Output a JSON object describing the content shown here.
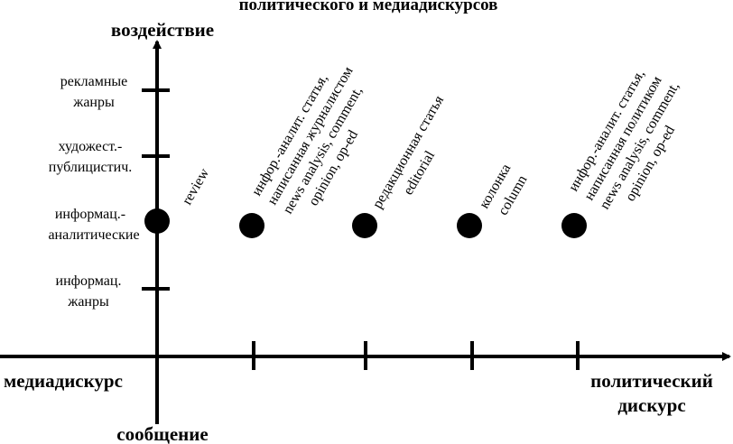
{
  "title": "политического и медиадискурсов",
  "axes": {
    "y_top": "воздействие",
    "y_bottom": "сообщение",
    "x_left": "медиадискурс",
    "x_right_line1": "политический",
    "x_right_line2": "дискурс"
  },
  "y_levels": [
    {
      "line1": "рекламные",
      "line2": "жанры"
    },
    {
      "line1": "художест.-",
      "line2": "публицистич."
    },
    {
      "line1": "информац.-",
      "line2": "аналитические"
    },
    {
      "line1": "информац.",
      "line2": "жанры"
    }
  ],
  "points": [
    {
      "lines": [
        "review"
      ]
    },
    {
      "lines": [
        "инфор.-аналит. статья,",
        "написанная журналистом",
        "news analysis, comment,",
        "opinion, op-ed"
      ]
    },
    {
      "lines": [
        "редакционная статья",
        "editorial"
      ]
    },
    {
      "lines": [
        "колонка",
        "column"
      ]
    },
    {
      "lines": [
        "инфор.-аналит. статья,",
        "написанная политиком",
        "news analysis, comment,",
        "opinion, op-ed"
      ]
    }
  ],
  "colors": {
    "ink": "#000000",
    "background": "#ffffff"
  }
}
